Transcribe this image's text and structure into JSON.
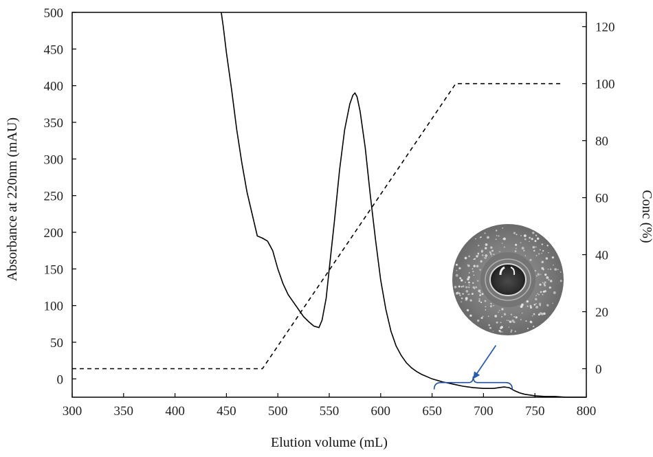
{
  "chart_data": {
    "type": "line",
    "title": "",
    "xlabel": "Elution volume (mL)",
    "ylabel": "Absorbance at 220nm (mAU)",
    "y2label": "Conc (%)",
    "xlim": [
      300,
      800
    ],
    "ylim": [
      -25,
      500
    ],
    "y2lim": [
      -10,
      125
    ],
    "x_ticks": [
      300,
      350,
      400,
      450,
      500,
      550,
      600,
      650,
      700,
      750,
      800
    ],
    "y_ticks": [
      0,
      50,
      100,
      150,
      200,
      250,
      300,
      350,
      400,
      450,
      500
    ],
    "y2_ticks": [
      0,
      20,
      40,
      60,
      80,
      100,
      120
    ],
    "grid": false,
    "series": [
      {
        "axis": "left",
        "style": "solid",
        "color": "#000000",
        "x": [
          445,
          447,
          450,
          455,
          460,
          465,
          470,
          475,
          480,
          485,
          490,
          495,
          500,
          505,
          510,
          515,
          520,
          525,
          530,
          535,
          540,
          543,
          547,
          550,
          555,
          560,
          565,
          570,
          573,
          575,
          577,
          580,
          585,
          590,
          595,
          600,
          605,
          610,
          615,
          620,
          625,
          630,
          635,
          640,
          650,
          660,
          670,
          680,
          690,
          700,
          710,
          715,
          720,
          725,
          730,
          735,
          740,
          745,
          750,
          760,
          770,
          780,
          800
        ],
        "y": [
          500,
          480,
          445,
          395,
          340,
          295,
          255,
          225,
          195,
          192,
          188,
          175,
          150,
          130,
          115,
          105,
          95,
          85,
          78,
          72,
          70,
          80,
          110,
          150,
          215,
          285,
          340,
          375,
          387,
          390,
          385,
          365,
          315,
          250,
          190,
          135,
          95,
          65,
          45,
          32,
          22,
          15,
          10,
          6,
          0,
          -4,
          -7,
          -10,
          -12,
          -13,
          -13,
          -12,
          -11,
          -12,
          -16,
          -19,
          -21,
          -22,
          -23,
          -24,
          -24,
          -25,
          -25
        ]
      },
      {
        "axis": "right",
        "style": "dashed",
        "color": "#000000",
        "x": [
          300,
          485,
          673,
          775
        ],
        "y": [
          0,
          0,
          100,
          100
        ]
      }
    ],
    "annotations": [
      {
        "type": "brace",
        "x_range": [
          652,
          728
        ],
        "axis": "left",
        "y": -5
      },
      {
        "type": "arrow",
        "from_x": 700,
        "from_y": 10,
        "to_x": 690,
        "to_y": 0
      },
      {
        "type": "inset-image",
        "description_icon": "agar-plate-inhibition-zone"
      }
    ]
  }
}
